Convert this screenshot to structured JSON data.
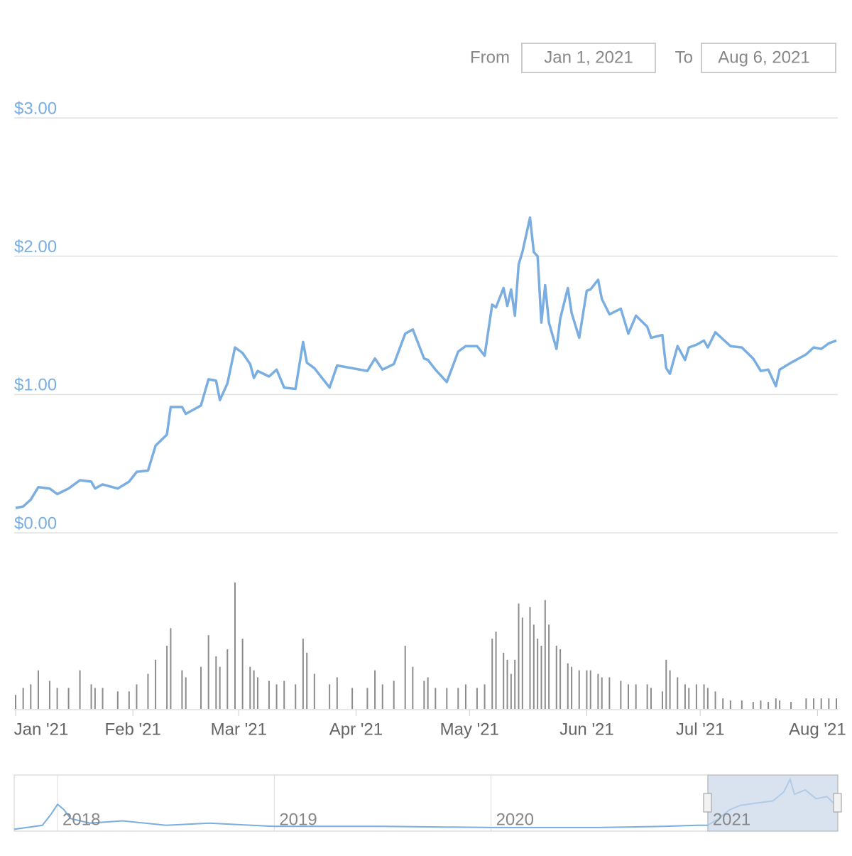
{
  "range_selector": {
    "from_label": "From",
    "from_value": "Jan 1, 2021",
    "to_label": "To",
    "to_value": "Aug 6, 2021"
  },
  "chart_data": [
    {
      "type": "line",
      "color": "#7aaee0",
      "x": [
        0,
        2,
        4,
        6,
        9,
        11,
        14,
        17,
        20,
        21,
        23,
        27,
        30,
        32,
        35,
        37,
        40,
        41,
        44,
        45,
        49,
        51,
        53,
        54,
        56,
        58,
        60,
        62,
        63,
        64,
        67,
        69,
        71,
        74,
        76,
        77,
        79,
        83,
        85,
        89,
        93,
        95,
        97,
        100,
        103,
        105,
        108,
        109,
        111,
        114,
        117,
        119,
        122,
        124,
        126,
        127,
        129,
        130,
        131,
        132,
        133,
        134,
        136,
        137,
        138,
        139,
        140,
        141,
        143,
        144,
        146,
        147,
        149,
        151,
        152,
        154,
        155,
        157,
        160,
        162,
        164,
        167,
        168,
        171,
        172,
        173,
        175,
        177,
        178,
        180,
        182,
        183,
        185,
        187,
        189,
        192,
        195,
        197,
        199,
        201,
        202,
        205,
        209,
        211,
        213,
        215,
        217
      ],
      "values": [
        0.18,
        0.19,
        0.24,
        0.33,
        0.32,
        0.28,
        0.32,
        0.38,
        0.37,
        0.32,
        0.35,
        0.32,
        0.37,
        0.44,
        0.45,
        0.63,
        0.71,
        0.91,
        0.91,
        0.86,
        0.92,
        1.11,
        1.1,
        0.96,
        1.08,
        1.34,
        1.3,
        1.22,
        1.12,
        1.17,
        1.13,
        1.18,
        1.05,
        1.04,
        1.38,
        1.23,
        1.19,
        1.05,
        1.21,
        1.19,
        1.17,
        1.26,
        1.18,
        1.22,
        1.44,
        1.47,
        1.26,
        1.25,
        1.18,
        1.09,
        1.31,
        1.35,
        1.35,
        1.28,
        1.65,
        1.63,
        1.77,
        1.64,
        1.76,
        1.57,
        1.94,
        2.03,
        2.28,
        2.03,
        2.0,
        1.52,
        1.79,
        1.52,
        1.33,
        1.55,
        1.77,
        1.59,
        1.41,
        1.75,
        1.76,
        1.83,
        1.69,
        1.58,
        1.62,
        1.44,
        1.57,
        1.49,
        1.41,
        1.43,
        1.19,
        1.15,
        1.35,
        1.25,
        1.34,
        1.36,
        1.39,
        1.34,
        1.45,
        1.4,
        1.35,
        1.34,
        1.26,
        1.17,
        1.18,
        1.06,
        1.18,
        1.23,
        1.29,
        1.34,
        1.33,
        1.37,
        1.39
      ],
      "xlim": [
        0,
        217
      ],
      "xticks": [
        {
          "value": 0,
          "label": "Jan '21"
        },
        {
          "value": 31,
          "label": "Feb '21"
        },
        {
          "value": 59,
          "label": "Mar '21"
        },
        {
          "value": 90,
          "label": "Apr '21"
        },
        {
          "value": 120,
          "label": "May '21"
        },
        {
          "value": 151,
          "label": "Jun '21"
        },
        {
          "value": 181,
          "label": "Jul '21"
        },
        {
          "value": 212,
          "label": "Aug '21"
        }
      ],
      "ylim": [
        0,
        3
      ],
      "yticks": [
        {
          "value": 0,
          "label": "$0.00"
        },
        {
          "value": 1,
          "label": "$1.00"
        },
        {
          "value": 2,
          "label": "$2.00"
        },
        {
          "value": 3,
          "label": "$3.00"
        }
      ],
      "grid": true
    },
    {
      "type": "bar",
      "color": "#8c8c8c",
      "x": [
        0,
        2,
        4,
        6,
        9,
        11,
        14,
        17,
        20,
        21,
        23,
        27,
        30,
        32,
        35,
        37,
        40,
        41,
        44,
        45,
        49,
        51,
        53,
        54,
        56,
        58,
        60,
        62,
        63,
        64,
        67,
        69,
        71,
        74,
        76,
        77,
        79,
        83,
        85,
        89,
        93,
        95,
        97,
        100,
        103,
        105,
        108,
        109,
        111,
        114,
        117,
        119,
        122,
        124,
        126,
        127,
        129,
        130,
        131,
        132,
        133,
        134,
        136,
        137,
        138,
        139,
        140,
        141,
        143,
        144,
        146,
        147,
        149,
        151,
        152,
        154,
        155,
        157,
        160,
        162,
        164,
        167,
        168,
        171,
        172,
        173,
        175,
        177,
        178,
        180,
        182,
        183,
        185,
        187,
        189,
        192,
        195,
        197,
        199,
        201,
        202,
        205,
        209,
        211,
        213,
        215,
        217
      ],
      "values": [
        20,
        30,
        35,
        55,
        40,
        30,
        30,
        55,
        35,
        30,
        30,
        25,
        25,
        35,
        50,
        70,
        90,
        115,
        55,
        45,
        60,
        105,
        75,
        60,
        85,
        180,
        100,
        60,
        55,
        45,
        40,
        35,
        40,
        35,
        100,
        80,
        50,
        35,
        45,
        30,
        30,
        55,
        35,
        40,
        90,
        60,
        40,
        45,
        30,
        30,
        30,
        35,
        30,
        35,
        100,
        110,
        80,
        70,
        50,
        70,
        150,
        130,
        145,
        120,
        100,
        90,
        155,
        120,
        90,
        85,
        65,
        60,
        55,
        55,
        55,
        50,
        45,
        45,
        40,
        35,
        35,
        35,
        30,
        25,
        70,
        55,
        45,
        35,
        30,
        35,
        35,
        30,
        25,
        15,
        12,
        12,
        10,
        12,
        10,
        15,
        12,
        10,
        15,
        15,
        15,
        15,
        15
      ]
    },
    {
      "type": "line",
      "color": "#7aaee0",
      "x": [
        2017.8,
        2017.93,
        2017.97,
        2018.0,
        2018.03,
        2018.06,
        2018.15,
        2018.3,
        2018.5,
        2018.7,
        2019.0,
        2019.5,
        2020.0,
        2020.5,
        2020.8,
        2020.95,
        2021.0,
        2021.05,
        2021.1,
        2021.15,
        2021.22,
        2021.3,
        2021.35,
        2021.38,
        2021.4,
        2021.45,
        2021.5,
        2021.55,
        2021.58,
        2021.6
      ],
      "values": [
        0.02,
        0.2,
        0.7,
        1.15,
        0.9,
        0.5,
        0.3,
        0.4,
        0.2,
        0.3,
        0.15,
        0.15,
        0.1,
        0.1,
        0.15,
        0.2,
        0.2,
        0.5,
        0.9,
        1.1,
        1.2,
        1.3,
        1.7,
        2.28,
        1.6,
        1.8,
        1.4,
        1.5,
        1.2,
        1.4
      ],
      "xlim": [
        2017.8,
        2021.6
      ],
      "xticks": [
        2018,
        2019,
        2020,
        2021
      ]
    }
  ]
}
